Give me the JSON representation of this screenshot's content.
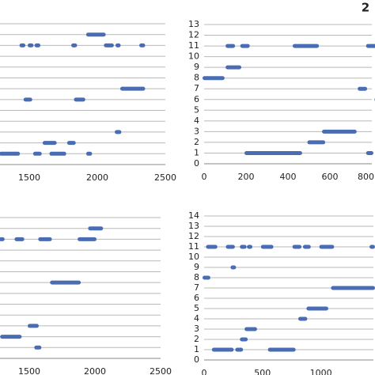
{
  "panel_label": "2",
  "chart_data": [
    {
      "type": "range",
      "xlim": [
        1285,
        2500
      ],
      "xticks": [
        1500,
        2000,
        2500
      ],
      "ylim": [
        0,
        13
      ],
      "yticks": [
        0,
        1,
        2,
        3,
        4,
        5,
        6,
        7,
        8,
        9,
        10,
        11,
        12,
        13
      ],
      "ytick_labels": false,
      "grid": true,
      "color": "#4a6cb3",
      "segments": [
        [
          12,
          1930,
          2050
        ],
        [
          11,
          1440,
          1460
        ],
        [
          11,
          1500,
          1520
        ],
        [
          11,
          1550,
          1570
        ],
        [
          11,
          1820,
          1840
        ],
        [
          11,
          2060,
          2110
        ],
        [
          11,
          2145,
          2160
        ],
        [
          11,
          2320,
          2340
        ],
        [
          7,
          2180,
          2340
        ],
        [
          6,
          1470,
          1510
        ],
        [
          6,
          1840,
          1900
        ],
        [
          3,
          2140,
          2165
        ],
        [
          2,
          1610,
          1690
        ],
        [
          2,
          1790,
          1830
        ],
        [
          1,
          1290,
          1420
        ],
        [
          1,
          1540,
          1580
        ],
        [
          1,
          1660,
          1760
        ],
        [
          1,
          1930,
          1950
        ]
      ]
    },
    {
      "type": "range",
      "xlim": [
        0,
        800
      ],
      "xticks": [
        0,
        200,
        400,
        600,
        800
      ],
      "ylim": [
        0,
        13
      ],
      "yticks": [
        0,
        1,
        2,
        3,
        4,
        5,
        6,
        7,
        8,
        9,
        10,
        11,
        12,
        13
      ],
      "ytick_labels": true,
      "grid": true,
      "color": "#4a6cb3",
      "segments": [
        [
          11,
          110,
          140
        ],
        [
          11,
          180,
          210
        ],
        [
          11,
          430,
          540
        ],
        [
          11,
          780,
          820
        ],
        [
          9,
          110,
          170
        ],
        [
          8,
          0,
          90
        ],
        [
          7,
          740,
          770
        ],
        [
          6,
          820,
          860
        ],
        [
          3,
          570,
          720
        ],
        [
          2,
          500,
          570
        ],
        [
          1,
          200,
          460
        ],
        [
          1,
          780,
          800
        ]
      ]
    },
    {
      "type": "range",
      "xlim": [
        1277,
        2500
      ],
      "xticks": [
        1500,
        2000,
        2500
      ],
      "ylim": [
        0,
        13
      ],
      "yticks": [
        0,
        1,
        2,
        3,
        4,
        5,
        6,
        7,
        8,
        9,
        10,
        11,
        12,
        13
      ],
      "ytick_labels": false,
      "grid": true,
      "color": "#4a6cb3",
      "segments": [
        [
          12,
          1960,
          2050
        ],
        [
          11,
          1280,
          1300
        ],
        [
          11,
          1400,
          1450
        ],
        [
          11,
          1580,
          1660
        ],
        [
          11,
          1880,
          2000
        ],
        [
          7,
          1670,
          1880
        ],
        [
          3,
          1500,
          1560
        ],
        [
          2,
          1290,
          1430
        ],
        [
          1,
          1550,
          1580
        ]
      ]
    },
    {
      "type": "range",
      "xlim": [
        0,
        1450
      ],
      "xticks": [
        0,
        500,
        1000
      ],
      "ylim": [
        0,
        14
      ],
      "yticks": [
        0,
        1,
        2,
        3,
        4,
        5,
        6,
        7,
        8,
        9,
        10,
        11,
        12,
        13,
        14
      ],
      "ytick_labels": true,
      "grid": true,
      "color": "#4a6cb3",
      "segments": [
        [
          11,
          30,
          100
        ],
        [
          11,
          200,
          250
        ],
        [
          11,
          320,
          350
        ],
        [
          11,
          380,
          400
        ],
        [
          11,
          500,
          580
        ],
        [
          11,
          770,
          820
        ],
        [
          11,
          860,
          900
        ],
        [
          11,
          1000,
          1100
        ],
        [
          11,
          1430,
          1450
        ],
        [
          9,
          240,
          260
        ],
        [
          8,
          0,
          40
        ],
        [
          7,
          1100,
          1450
        ],
        [
          5,
          890,
          1050
        ],
        [
          4,
          820,
          870
        ],
        [
          3,
          360,
          440
        ],
        [
          2,
          320,
          360
        ],
        [
          1,
          80,
          240
        ],
        [
          1,
          280,
          320
        ],
        [
          1,
          560,
          770
        ]
      ]
    }
  ]
}
